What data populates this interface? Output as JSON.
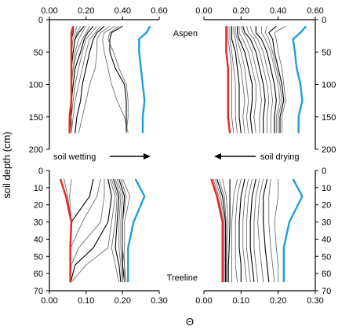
{
  "figure": {
    "y_axis_label": "soil depth (cm)",
    "x_axis_label": "Θ",
    "annotation_wetting": "soil wetting",
    "annotation_drying": "soil drying"
  },
  "chart_data": [
    {
      "id": "aspen-wetting",
      "type": "line",
      "site_label": "Aspen",
      "xlim": [
        0,
        0.6
      ],
      "ylim": [
        200,
        0
      ],
      "x_ticks": [
        "0.00",
        "0.20",
        "0.40",
        "0.60"
      ],
      "y_ticks": [
        "0",
        "50",
        "100",
        "150",
        "200"
      ],
      "x_tick_side": "top",
      "y_tick_side": "left",
      "depths": [
        10,
        20,
        30,
        50,
        75,
        100,
        125,
        150,
        175
      ],
      "min_envelope": [
        0.13,
        0.12,
        0.12,
        0.12,
        0.12,
        0.12,
        0.12,
        0.11,
        0.11
      ],
      "max_envelope": [
        0.55,
        0.53,
        0.49,
        0.49,
        0.5,
        0.51,
        0.52,
        0.51,
        0.51
      ],
      "profiles": [
        [
          0.13,
          0.13,
          0.12,
          0.12,
          0.12,
          0.12,
          0.12,
          0.11,
          0.11
        ],
        [
          0.15,
          0.14,
          0.13,
          0.12,
          0.12,
          0.12,
          0.12,
          0.11,
          0.11
        ],
        [
          0.17,
          0.15,
          0.14,
          0.13,
          0.12,
          0.12,
          0.12,
          0.11,
          0.11
        ],
        [
          0.19,
          0.16,
          0.14,
          0.13,
          0.12,
          0.12,
          0.12,
          0.11,
          0.11
        ],
        [
          0.2,
          0.18,
          0.16,
          0.14,
          0.13,
          0.12,
          0.12,
          0.11,
          0.11
        ],
        [
          0.22,
          0.2,
          0.18,
          0.15,
          0.13,
          0.12,
          0.12,
          0.11,
          0.11
        ],
        [
          0.24,
          0.21,
          0.19,
          0.17,
          0.14,
          0.13,
          0.12,
          0.12,
          0.11
        ],
        [
          0.26,
          0.23,
          0.2,
          0.18,
          0.16,
          0.14,
          0.13,
          0.12,
          0.12
        ],
        [
          0.28,
          0.25,
          0.22,
          0.2,
          0.18,
          0.16,
          0.14,
          0.13,
          0.12
        ],
        [
          0.3,
          0.26,
          0.24,
          0.22,
          0.2,
          0.18,
          0.17,
          0.15,
          0.14
        ],
        [
          0.33,
          0.28,
          0.26,
          0.26,
          0.25,
          0.22,
          0.2,
          0.18,
          0.16
        ],
        [
          0.36,
          0.3,
          0.29,
          0.3,
          0.32,
          0.34,
          0.37,
          0.41,
          0.43
        ],
        [
          0.4,
          0.34,
          0.33,
          0.33,
          0.36,
          0.41,
          0.42,
          0.42,
          0.42
        ],
        [
          0.38,
          0.33,
          0.32,
          0.35,
          0.38,
          0.42,
          0.43,
          0.43,
          0.42
        ]
      ]
    },
    {
      "id": "aspen-drying",
      "type": "line",
      "xlim": [
        0,
        0.6
      ],
      "ylim": [
        200,
        0
      ],
      "x_ticks": [
        "0.00",
        "0.20",
        "0.40",
        "0.60"
      ],
      "y_ticks": [
        "0",
        "50",
        "100",
        "150",
        "200"
      ],
      "x_tick_side": "top",
      "y_tick_side": "right",
      "depths": [
        10,
        20,
        30,
        50,
        75,
        100,
        125,
        150,
        175
      ],
      "min_envelope": [
        0.12,
        0.12,
        0.12,
        0.12,
        0.13,
        0.13,
        0.13,
        0.13,
        0.14
      ],
      "max_envelope": [
        0.55,
        0.52,
        0.48,
        0.49,
        0.5,
        0.52,
        0.53,
        0.51,
        0.51
      ],
      "profiles": [
        [
          0.12,
          0.12,
          0.12,
          0.12,
          0.13,
          0.13,
          0.13,
          0.13,
          0.14
        ],
        [
          0.13,
          0.13,
          0.13,
          0.14,
          0.15,
          0.15,
          0.15,
          0.15,
          0.16
        ],
        [
          0.14,
          0.14,
          0.14,
          0.15,
          0.16,
          0.17,
          0.17,
          0.17,
          0.18
        ],
        [
          0.15,
          0.15,
          0.15,
          0.17,
          0.18,
          0.19,
          0.19,
          0.19,
          0.2
        ],
        [
          0.16,
          0.16,
          0.17,
          0.18,
          0.2,
          0.21,
          0.22,
          0.21,
          0.22
        ],
        [
          0.17,
          0.17,
          0.18,
          0.2,
          0.22,
          0.23,
          0.24,
          0.23,
          0.24
        ],
        [
          0.18,
          0.18,
          0.19,
          0.22,
          0.24,
          0.26,
          0.26,
          0.25,
          0.26
        ],
        [
          0.19,
          0.19,
          0.21,
          0.24,
          0.26,
          0.28,
          0.28,
          0.27,
          0.28
        ],
        [
          0.2,
          0.21,
          0.23,
          0.26,
          0.28,
          0.3,
          0.31,
          0.3,
          0.3
        ],
        [
          0.21,
          0.22,
          0.25,
          0.28,
          0.3,
          0.32,
          0.33,
          0.32,
          0.32
        ],
        [
          0.23,
          0.24,
          0.27,
          0.3,
          0.32,
          0.34,
          0.35,
          0.34,
          0.34
        ],
        [
          0.25,
          0.26,
          0.29,
          0.32,
          0.34,
          0.36,
          0.37,
          0.36,
          0.36
        ],
        [
          0.28,
          0.28,
          0.31,
          0.34,
          0.36,
          0.38,
          0.39,
          0.38,
          0.38
        ],
        [
          0.31,
          0.31,
          0.33,
          0.36,
          0.38,
          0.4,
          0.41,
          0.39,
          0.39
        ],
        [
          0.34,
          0.33,
          0.35,
          0.37,
          0.39,
          0.41,
          0.42,
          0.4,
          0.4
        ],
        [
          0.39,
          0.35,
          0.37,
          0.38,
          0.4,
          0.42,
          0.43,
          0.41,
          0.41
        ],
        [
          0.44,
          0.38,
          0.39,
          0.4,
          0.42,
          0.43,
          0.44,
          0.42,
          0.42
        ]
      ]
    },
    {
      "id": "treeline-wetting",
      "type": "line",
      "site_label": "Treeline",
      "xlim": [
        0,
        0.3
      ],
      "ylim": [
        70,
        0
      ],
      "x_ticks": [
        "0.00",
        "0.10",
        "0.20",
        "0.30"
      ],
      "y_ticks": [
        "0",
        "10",
        "20",
        "30",
        "40",
        "50",
        "60",
        "70"
      ],
      "x_tick_side": "bottom",
      "y_tick_side": "left",
      "depths": [
        5,
        15,
        30,
        45,
        55,
        65
      ],
      "min_envelope": [
        0.03,
        0.045,
        0.06,
        0.057,
        0.057,
        0.057
      ],
      "max_envelope": [
        0.235,
        0.26,
        0.23,
        0.215,
        0.215,
        0.215
      ],
      "profiles": [
        [
          0.03,
          0.045,
          0.06,
          0.057,
          0.057,
          0.057
        ],
        [
          0.04,
          0.05,
          0.06,
          0.057,
          0.057,
          0.057
        ],
        [
          0.06,
          0.055,
          0.06,
          0.057,
          0.057,
          0.057
        ],
        [
          0.12,
          0.11,
          0.06,
          0.058,
          0.057,
          0.057
        ],
        [
          0.14,
          0.13,
          0.09,
          0.058,
          0.057,
          0.057
        ],
        [
          0.15,
          0.15,
          0.14,
          0.08,
          0.06,
          0.057
        ],
        [
          0.16,
          0.17,
          0.16,
          0.12,
          0.07,
          0.058
        ],
        [
          0.165,
          0.18,
          0.17,
          0.16,
          0.1,
          0.06
        ],
        [
          0.17,
          0.185,
          0.18,
          0.17,
          0.18,
          0.19
        ],
        [
          0.175,
          0.19,
          0.185,
          0.18,
          0.19,
          0.195
        ],
        [
          0.18,
          0.195,
          0.19,
          0.19,
          0.195,
          0.2
        ],
        [
          0.185,
          0.2,
          0.195,
          0.195,
          0.2,
          0.2
        ],
        [
          0.19,
          0.205,
          0.2,
          0.2,
          0.2,
          0.205
        ],
        [
          0.195,
          0.21,
          0.2,
          0.2,
          0.205,
          0.205
        ],
        [
          0.2,
          0.22,
          0.205,
          0.205,
          0.205,
          0.21
        ]
      ]
    },
    {
      "id": "treeline-drying",
      "type": "line",
      "xlim": [
        0,
        0.3
      ],
      "ylim": [
        70,
        0
      ],
      "x_ticks": [
        "0.00",
        "0.10",
        "0.20",
        "0.30"
      ],
      "y_ticks": [
        "0",
        "10",
        "20",
        "30",
        "40",
        "50",
        "60",
        "70"
      ],
      "x_tick_side": "bottom",
      "y_tick_side": "right",
      "depths": [
        5,
        15,
        30,
        45,
        55,
        65
      ],
      "min_envelope": [
        0.02,
        0.035,
        0.05,
        0.05,
        0.05,
        0.05
      ],
      "max_envelope": [
        0.24,
        0.265,
        0.23,
        0.215,
        0.215,
        0.215
      ],
      "profiles": [
        [
          0.02,
          0.035,
          0.05,
          0.05,
          0.05,
          0.05
        ],
        [
          0.025,
          0.04,
          0.052,
          0.052,
          0.052,
          0.052
        ],
        [
          0.03,
          0.045,
          0.055,
          0.055,
          0.055,
          0.055
        ],
        [
          0.035,
          0.05,
          0.058,
          0.058,
          0.058,
          0.058
        ],
        [
          0.04,
          0.055,
          0.06,
          0.06,
          0.06,
          0.06
        ],
        [
          0.05,
          0.06,
          0.065,
          0.062,
          0.062,
          0.062
        ],
        [
          0.07,
          0.07,
          0.07,
          0.068,
          0.066,
          0.066
        ],
        [
          0.09,
          0.08,
          0.075,
          0.075,
          0.075,
          0.075
        ],
        [
          0.1,
          0.09,
          0.085,
          0.085,
          0.085,
          0.09
        ],
        [
          0.11,
          0.1,
          0.095,
          0.095,
          0.1,
          0.1
        ],
        [
          0.12,
          0.11,
          0.105,
          0.105,
          0.11,
          0.115
        ],
        [
          0.13,
          0.12,
          0.115,
          0.115,
          0.12,
          0.125
        ],
        [
          0.14,
          0.13,
          0.125,
          0.125,
          0.13,
          0.135
        ],
        [
          0.15,
          0.14,
          0.135,
          0.135,
          0.14,
          0.145
        ],
        [
          0.16,
          0.15,
          0.145,
          0.15,
          0.155,
          0.16
        ],
        [
          0.17,
          0.16,
          0.16,
          0.165,
          0.17,
          0.175
        ],
        [
          0.18,
          0.175,
          0.175,
          0.18,
          0.185,
          0.19
        ],
        [
          0.2,
          0.2,
          0.19,
          0.195,
          0.2,
          0.2
        ]
      ]
    }
  ],
  "colors": {
    "min_envelope": "#e8251f",
    "max_envelope": "#1e9fd6",
    "profile": "#000000",
    "axis": "#000000"
  }
}
